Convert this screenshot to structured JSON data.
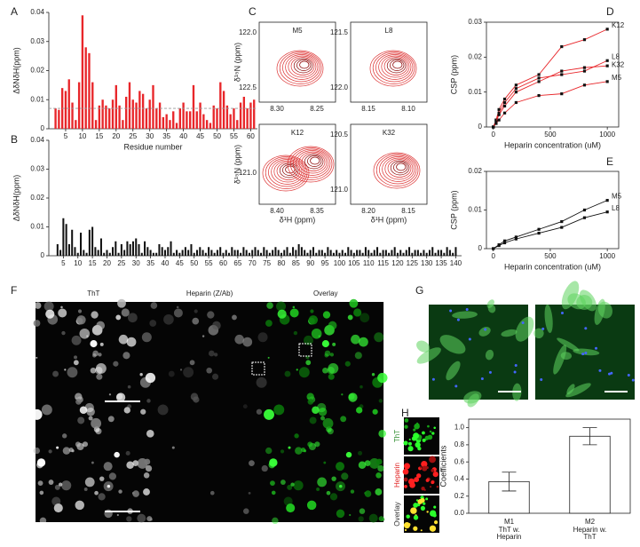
{
  "chart_data": [
    {
      "type": "bar",
      "panel": "A",
      "ylabel": "ΔδNδH(ppm)",
      "xlabel": "Residue number",
      "color": "#e8262a",
      "x": [
        1,
        2,
        3,
        4,
        5,
        6,
        7,
        8,
        9,
        10,
        11,
        12,
        13,
        14,
        15,
        16,
        17,
        18,
        19,
        20,
        21,
        22,
        23,
        24,
        25,
        26,
        27,
        28,
        29,
        30,
        31,
        32,
        33,
        34,
        35,
        36,
        37,
        38,
        39,
        40,
        41,
        42,
        43,
        44,
        45,
        46,
        47,
        48,
        49,
        50,
        51,
        52,
        53,
        54,
        55,
        56,
        57,
        58,
        59,
        60,
        61
      ],
      "values": [
        0,
        0.007,
        0.0065,
        0.014,
        0.013,
        0.017,
        0.009,
        0.003,
        0.016,
        0.039,
        0.028,
        0.026,
        0.016,
        0.003,
        0.008,
        0.01,
        0.008,
        0.007,
        0.01,
        0.015,
        0.008,
        0.003,
        0.011,
        0.016,
        0.01,
        0.009,
        0.013,
        0.012,
        0.007,
        0.01,
        0.015,
        0.007,
        0.009,
        0.004,
        0.005,
        0.003,
        0.006,
        0.002,
        0.007,
        0.009,
        0.006,
        0.006,
        0.015,
        0.006,
        0.009,
        0.005,
        0.003,
        0.002,
        0.008,
        0.007,
        0.016,
        0.013,
        0.008,
        0.005,
        0.007,
        0.003,
        0.009,
        0.011,
        0.007,
        0.009,
        0.01
      ],
      "xlim": [
        0,
        62
      ],
      "ylim": [
        0,
        0.04
      ],
      "xticks": [
        5,
        10,
        15,
        20,
        25,
        30,
        35,
        40,
        45,
        50,
        55,
        60
      ],
      "yticks": [
        0,
        0.01,
        0.02,
        0.03,
        0.04
      ],
      "threshold": 0.007
    },
    {
      "type": "bar",
      "panel": "B",
      "ylabel": "ΔδNδH(ppm)",
      "color": "#111111",
      "x": [
        1,
        2,
        3,
        4,
        5,
        6,
        7,
        8,
        9,
        10,
        11,
        12,
        13,
        14,
        15,
        16,
        17,
        18,
        19,
        20,
        21,
        22,
        23,
        24,
        25,
        26,
        27,
        28,
        29,
        30,
        31,
        32,
        33,
        34,
        35,
        36,
        37,
        38,
        39,
        40,
        41,
        42,
        43,
        44,
        45,
        46,
        47,
        48,
        49,
        50,
        51,
        52,
        53,
        54,
        55,
        56,
        57,
        58,
        59,
        60,
        61,
        62,
        63,
        64,
        65,
        66,
        67,
        68,
        69,
        70,
        71,
        72,
        73,
        74,
        75,
        76,
        77,
        78,
        79,
        80,
        81,
        82,
        83,
        84,
        85,
        86,
        87,
        88,
        89,
        90,
        91,
        92,
        93,
        94,
        95,
        96,
        97,
        98,
        99,
        100,
        101,
        102,
        103,
        104,
        105,
        106,
        107,
        108,
        109,
        110,
        111,
        112,
        113,
        114,
        115,
        116,
        117,
        118,
        119,
        120,
        121,
        122,
        123,
        124,
        125,
        126,
        127,
        128,
        129,
        130,
        131,
        132,
        133,
        134,
        135,
        136,
        137,
        138,
        139,
        140
      ],
      "values": [
        0,
        0,
        0.004,
        0.002,
        0.013,
        0.011,
        0.004,
        0.009,
        0.003,
        0.001,
        0.008,
        0.002,
        0.001,
        0.009,
        0.01,
        0.003,
        0.002,
        0.006,
        0.001,
        0.002,
        0.001,
        0.003,
        0.005,
        0.001,
        0.004,
        0.002,
        0.005,
        0.004,
        0.005,
        0.006,
        0.004,
        0.001,
        0.005,
        0.003,
        0.002,
        0.001,
        0.001,
        0.004,
        0.003,
        0.002,
        0.003,
        0.005,
        0.001,
        0.002,
        0.001,
        0.002,
        0.003,
        0.002,
        0.004,
        0.001,
        0.002,
        0.003,
        0.002,
        0.001,
        0.003,
        0.002,
        0.001,
        0.002,
        0.003,
        0.001,
        0.002,
        0.001,
        0.003,
        0.002,
        0.002,
        0.001,
        0.003,
        0.002,
        0.001,
        0.002,
        0.003,
        0.002,
        0.001,
        0.003,
        0.002,
        0.001,
        0.002,
        0.003,
        0.002,
        0.001,
        0.002,
        0.003,
        0.001,
        0.003,
        0.002,
        0.004,
        0.003,
        0.002,
        0.001,
        0.002,
        0.003,
        0.001,
        0.002,
        0.002,
        0.001,
        0.003,
        0.002,
        0.001,
        0.002,
        0.001,
        0.002,
        0.001,
        0.003,
        0.002,
        0.001,
        0.002,
        0.002,
        0.001,
        0.003,
        0.002,
        0.001,
        0.002,
        0.003,
        0.001,
        0.002,
        0.002,
        0.001,
        0.002,
        0.003,
        0.001,
        0.002,
        0.001,
        0.002,
        0.003,
        0.001,
        0.002,
        0.002,
        0.001,
        0.002,
        0.001,
        0.002,
        0.003,
        0.001,
        0.002,
        0.002,
        0.001,
        0.003,
        0.002,
        0.001,
        0.003
      ],
      "xlim": [
        0,
        142
      ],
      "ylim": [
        0,
        0.04
      ],
      "xticks": [
        5,
        10,
        15,
        20,
        25,
        30,
        35,
        40,
        45,
        50,
        55,
        60,
        65,
        70,
        75,
        80,
        85,
        90,
        95,
        100,
        105,
        110,
        115,
        120,
        125,
        130,
        135,
        140
      ],
      "yticks": [
        0,
        0.01,
        0.02,
        0.03,
        0.04
      ]
    },
    {
      "type": "scatter",
      "panel": "D",
      "ylabel": "CSP (ppm)",
      "xlabel": "Heparin concentration (uM)",
      "point_color": "#111111",
      "line_color": "#e8262a",
      "x": [
        0,
        25,
        50,
        100,
        200,
        400,
        600,
        800,
        1000
      ],
      "series": [
        {
          "name": "K12",
          "values": [
            0,
            0.002,
            0.005,
            0.008,
            0.012,
            0.015,
            0.023,
            0.025,
            0.028
          ]
        },
        {
          "name": "L8",
          "values": [
            0,
            0.002,
            0.004,
            0.007,
            0.011,
            0.014,
            0.015,
            0.016,
            0.019
          ]
        },
        {
          "name": "K32",
          "values": [
            0,
            0.0015,
            0.0035,
            0.006,
            0.01,
            0.013,
            0.016,
            0.017,
            0.0175
          ]
        },
        {
          "name": "M5",
          "values": [
            0,
            0.001,
            0.002,
            0.004,
            0.007,
            0.009,
            0.0095,
            0.012,
            0.013
          ]
        }
      ],
      "xlim": [
        -60,
        1100
      ],
      "ylim": [
        0,
        0.03
      ],
      "xticks": [
        0,
        500,
        1000
      ],
      "yticks": [
        0,
        0.01,
        0.02,
        0.03
      ]
    },
    {
      "type": "scatter",
      "panel": "E",
      "ylabel": "CSP (ppm)",
      "xlabel": "Heparin concentration (uM)",
      "point_color": "#111111",
      "line_color": "#111111",
      "x": [
        0,
        50,
        100,
        200,
        400,
        600,
        800,
        1000
      ],
      "series": [
        {
          "name": "M5",
          "values": [
            0,
            0.001,
            0.002,
            0.003,
            0.005,
            0.007,
            0.01,
            0.0125
          ]
        },
        {
          "name": "L8",
          "values": [
            0,
            0.0008,
            0.0015,
            0.0025,
            0.004,
            0.0055,
            0.008,
            0.0095
          ]
        }
      ],
      "xlim": [
        -60,
        1100
      ],
      "ylim": [
        0,
        0.02
      ],
      "xticks": [
        0,
        500,
        1000
      ],
      "yticks": [
        0,
        0.01,
        0.02
      ]
    },
    {
      "type": "bar",
      "panel": "H",
      "ylabel": "Coefficients",
      "color": "#ffffff",
      "categories": [
        "M1",
        "M2"
      ],
      "sublabels": [
        [
          "ThT w.",
          "Heparin"
        ],
        [
          "Heparin w.",
          "ThT"
        ]
      ],
      "values": [
        0.37,
        0.9
      ],
      "errors": [
        0.11,
        0.1
      ],
      "ylim": [
        0,
        1.1
      ],
      "yticks": [
        {
          "value": 0,
          "label": "0.0"
        },
        0.2,
        0.4,
        0.6,
        0.8,
        {
          "value": 1,
          "label": "1.0"
        }
      ]
    }
  ],
  "nmr": {
    "panel": "C",
    "ylabel": "δ¹⁵N (ppm)",
    "xlabel": "δ¹H (ppm)",
    "plots": [
      {
        "title": "M5",
        "xticks": [
          "8.30",
          "8.25"
        ],
        "yticks": [
          "122.0",
          "122.5"
        ]
      },
      {
        "title": "L8",
        "xticks": [
          "8.15",
          "8.10"
        ],
        "yticks": [
          "121.5",
          "122.0"
        ]
      },
      {
        "title": "K12",
        "xticks": [
          "8.40",
          "8.35"
        ],
        "yticks": [
          "121.0"
        ]
      },
      {
        "title": "K32",
        "xticks": [
          "8.20",
          "8.15"
        ],
        "yticks": [
          "120.5",
          "121.0"
        ]
      }
    ]
  },
  "panel_f": {
    "panel": "F",
    "columns": [
      "ThT",
      "Heparin (Z/Ab)",
      "Overlay"
    ]
  },
  "panel_g": {
    "panel": "G"
  },
  "panel_h_images": {
    "labels": [
      "ThT",
      "Heparin",
      "Overlay"
    ]
  }
}
